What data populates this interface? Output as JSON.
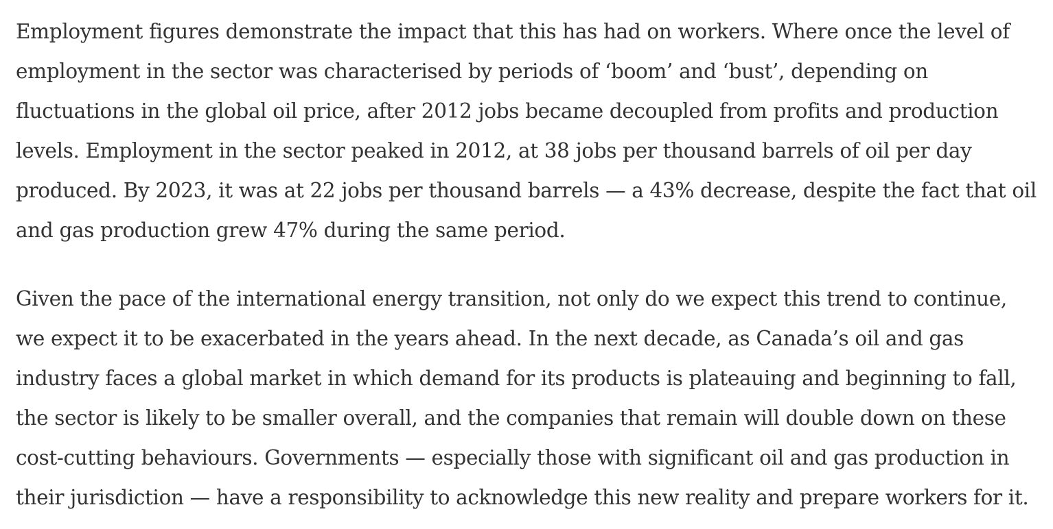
{
  "article": {
    "paragraphs": [
      {
        "lines": [
          "Employment figures demonstrate the impact that this has had on workers. Where once the level of",
          "employment in the sector was characterised by periods of ‘boom’ and ‘bust’, depending on",
          "fluctuations in the global oil price, after 2012 jobs became decoupled from profits and production",
          "levels. Employment in the sector peaked in 2012, at 38 jobs per thousand barrels of oil per day",
          "produced. By 2023, it was at 22 jobs per thousand barrels — a 43% decrease, despite the fact that oil",
          "and gas production grew 47% during the same period."
        ]
      },
      {
        "lines": [
          "Given the pace of the international energy transition, not only do we expect this trend to continue,",
          "we expect it to be exacerbated in the years ahead. In the next decade, as Canada’s oil and gas",
          "industry faces a global market in which demand for its products is plateauing and beginning to fall,",
          "the sector is likely to be smaller overall, and the companies that remain will double down on these",
          "cost-cutting behaviours. Governments — especially those with significant oil and gas production in",
          "their jurisdiction — have a responsibility to acknowledge this new reality and prepare workers for it."
        ]
      }
    ]
  }
}
